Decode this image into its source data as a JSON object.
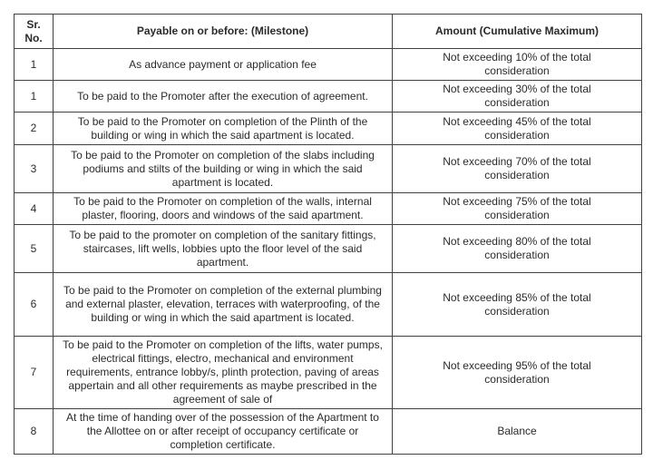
{
  "document": {
    "background": "#ffffff",
    "border_color": "#414141",
    "text_color": "#2b2b2b"
  },
  "table": {
    "headers": {
      "sr_no": "Sr.\nNo.",
      "milestone": "Payable on or before: (Milestone)",
      "amount": "Amount (Cumulative Maximum)"
    },
    "rows": [
      {
        "sr": "1",
        "milestone": "As advance payment or application fee",
        "amount": "Not exceeding 10% of the total consideration"
      },
      {
        "sr": "1",
        "milestone": "To be paid to the Promoter after the execution of agreement.",
        "amount": "Not exceeding 30% of the total consideration"
      },
      {
        "sr": "2",
        "milestone": "To be paid to the Promoter on completion of the Plinth of the building or wing in which the said apartment is located.",
        "amount": "Not exceeding 45% of the total consideration"
      },
      {
        "sr": "3",
        "milestone": "To be paid to the Promoter on completion of the slabs including podiums and stilts of the building or wing in which the said apartment is located.",
        "amount": "Not exceeding 70% of the total consideration"
      },
      {
        "sr": "4",
        "milestone": "To be paid to the Promoter on completion of the walls, internal plaster, flooring, doors and windows of the said apartment.",
        "amount": "Not exceeding 75% of the total consideration"
      },
      {
        "sr": "5",
        "milestone": "To be paid to the promoter on completion of the sanitary fittings, staircases, lift wells, lobbies upto the floor level of the said apartment.",
        "amount": "Not exceeding 80% of the total consideration"
      },
      {
        "sr": "6",
        "milestone": "To be paid to the Promoter on completion of the external plumbing and external plaster, elevation, terraces with waterproofing, of the building or wing in which the said apartment is located.",
        "amount": "Not exceeding 85% of the total consideration"
      },
      {
        "sr": "7",
        "milestone": "To be paid to the Promoter on completion of the lifts, water pumps, electrical fittings, electro, mechanical and environment requirements, entrance lobby/s, plinth protection, paving of areas appertain and all other requirements as maybe prescribed in the agreement of sale of",
        "amount": "Not exceeding 95% of the total consideration"
      },
      {
        "sr": "8",
        "milestone": "At the time of handing over of the possession of the Apartment to the Allottee on or after receipt of occupancy certificate or completion certificate.",
        "amount": "Balance"
      }
    ]
  }
}
